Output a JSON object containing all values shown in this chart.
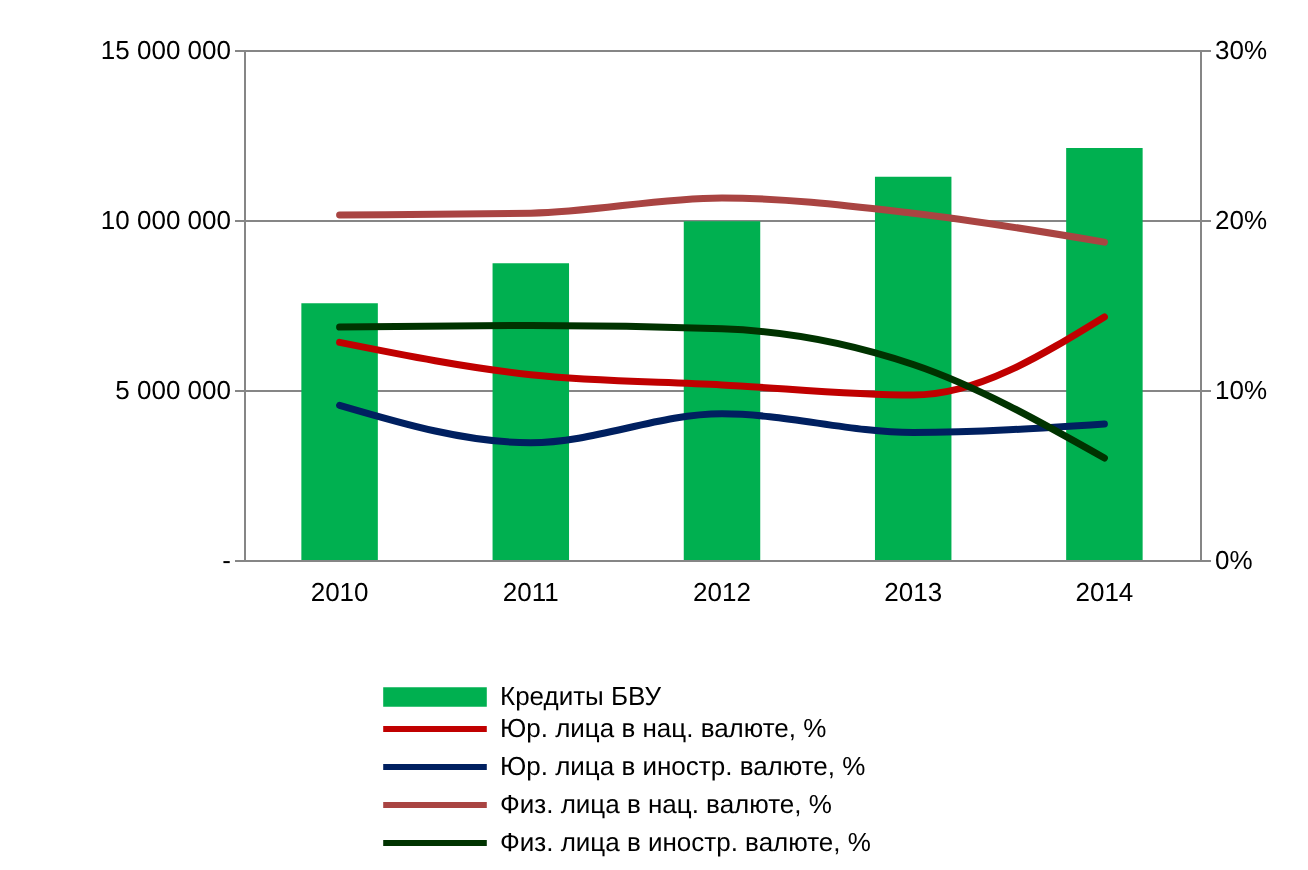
{
  "chart_data": {
    "type": "bar",
    "categories": [
      "2010",
      "2011",
      "2012",
      "2013",
      "2014"
    ],
    "series": [
      {
        "name": "Кредиты БВУ",
        "type": "bar",
        "color": "#00b050",
        "values": [
          7550000,
          8730000,
          9960000,
          11270000,
          12120000
        ]
      },
      {
        "name": "Юр. лица в нац. валюте, %",
        "type": "line",
        "axis": "y2",
        "color": "#c00000",
        "values": [
          12.8,
          10.9,
          10.3,
          9.7,
          14.3
        ]
      },
      {
        "name": "Юр. лица в иностр. валюте, %",
        "type": "line",
        "axis": "y2",
        "color": "#002060",
        "values": [
          9.1,
          6.9,
          8.6,
          7.5,
          8.0
        ]
      },
      {
        "name": "Физ. лица в нац. валюте, %",
        "type": "line",
        "axis": "y2",
        "color": "#a94442",
        "values": [
          20.3,
          20.4,
          21.3,
          20.4,
          18.7
        ]
      },
      {
        "name": "Физ. лица в иностр. валюте, %",
        "type": "line",
        "axis": "y2",
        "color": "#003300",
        "values": [
          13.7,
          13.8,
          13.6,
          11.5,
          6.0
        ]
      }
    ],
    "ylim": [
      0,
      15000000
    ],
    "yticks": [
      {
        "value": 0,
        "label": "-"
      },
      {
        "value": 5000000,
        "label": "5 000 000"
      },
      {
        "value": 10000000,
        "label": "10 000 000"
      },
      {
        "value": 15000000,
        "label": "15 000 000"
      }
    ],
    "y2lim": [
      0,
      30
    ],
    "y2ticks": [
      {
        "value": 0,
        "label": "0%"
      },
      {
        "value": 10,
        "label": "10%"
      },
      {
        "value": 20,
        "label": "20%"
      },
      {
        "value": 30,
        "label": "30%"
      }
    ],
    "grid": "y",
    "legend": "bottom"
  }
}
